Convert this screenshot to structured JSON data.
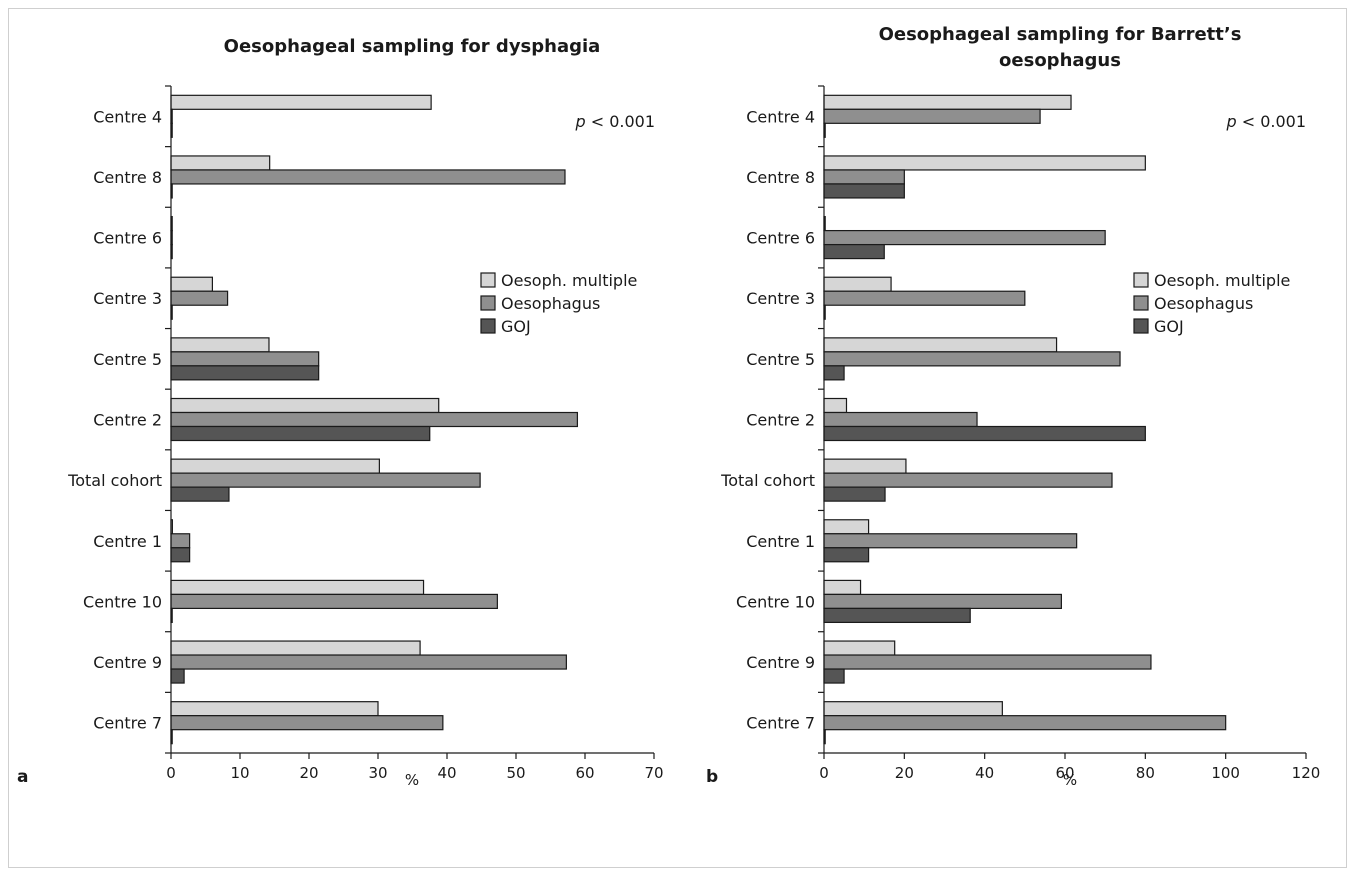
{
  "chart_data": [
    {
      "type": "bar",
      "orientation": "horizontal",
      "panel_label": "a",
      "title": "Oesophageal sampling for dysphagia",
      "annotation": {
        "p_label": "p",
        "p_rest": " < 0.001"
      },
      "xlabel": "%",
      "xlim": [
        0,
        70
      ],
      "xticks": [
        0,
        10,
        20,
        30,
        40,
        50,
        60,
        70
      ],
      "grid": false,
      "legend_position": "right",
      "categories": [
        "Centre 4",
        "Centre 8",
        "Centre 6",
        "Centre 3",
        "Centre 5",
        "Centre 2",
        "Total cohort",
        "Centre 1",
        "Centre 10",
        "Centre 9",
        "Centre 7"
      ],
      "series": [
        {
          "name": "Oesoph. multiple",
          "color": "#d6d6d6",
          "values": [
            37.7,
            14.3,
            0,
            6.0,
            14.2,
            38.8,
            30.2,
            0.2,
            36.6,
            36.1,
            30.0
          ]
        },
        {
          "name": "Oesophagus",
          "color": "#8f8f8f",
          "values": [
            0,
            57.1,
            0,
            8.2,
            21.4,
            58.9,
            44.8,
            2.7,
            47.3,
            57.3,
            39.4
          ]
        },
        {
          "name": "GOJ",
          "color": "#555555",
          "values": [
            0,
            0,
            0,
            0,
            21.4,
            37.5,
            8.4,
            2.7,
            0,
            1.9,
            0
          ]
        }
      ]
    },
    {
      "type": "bar",
      "orientation": "horizontal",
      "panel_label": "b",
      "title": "Oesophageal sampling for Barrett’s oesophagus",
      "title_lines": [
        "Oesophageal sampling for Barrett’s",
        "oesophagus"
      ],
      "annotation": {
        "p_label": "p",
        "p_rest": " < 0.001"
      },
      "xlabel": "%",
      "xlim": [
        0,
        120
      ],
      "xticks": [
        0,
        20,
        40,
        60,
        80,
        100,
        120
      ],
      "grid": false,
      "legend_position": "right",
      "categories": [
        "Centre 4",
        "Centre 8",
        "Centre 6",
        "Centre 3",
        "Centre 5",
        "Centre 2",
        "Total cohort",
        "Centre 1",
        "Centre 10",
        "Centre 9",
        "Centre 7"
      ],
      "series": [
        {
          "name": "Oesoph. multiple",
          "color": "#d6d6d6",
          "values": [
            61.5,
            80.0,
            0,
            16.7,
            57.9,
            5.6,
            20.4,
            11.1,
            9.1,
            17.6,
            44.4
          ]
        },
        {
          "name": "Oesophagus",
          "color": "#8f8f8f",
          "values": [
            53.8,
            20.0,
            70.0,
            50.0,
            73.7,
            38.1,
            71.7,
            62.9,
            59.1,
            81.4,
            100.0
          ]
        },
        {
          "name": "GOJ",
          "color": "#555555",
          "values": [
            0,
            20.0,
            15.0,
            0,
            5.0,
            80.0,
            15.2,
            11.1,
            36.4,
            5.0,
            0
          ]
        }
      ]
    }
  ]
}
